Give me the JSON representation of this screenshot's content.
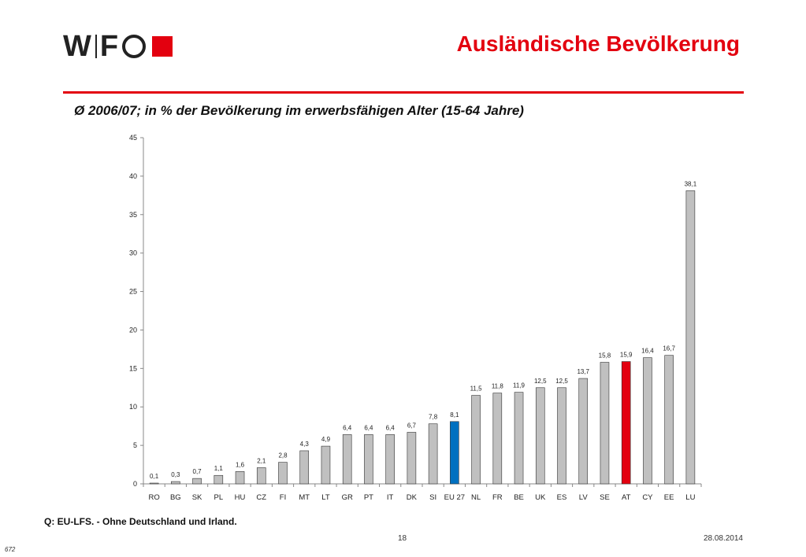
{
  "logo": {
    "text_left": "W",
    "text_mid": "F"
  },
  "header": {
    "title": "Ausländische Bevölkerung"
  },
  "subtitle": "Ø 2006/07; in % der Bevölkerung im erwerbsfähigen Alter (15-64 Jahre)",
  "footer": {
    "source": "Q: EU-LFS. - Ohne Deutschland und Irland.",
    "page": "18",
    "date": "28.08.2014",
    "slide_id": "672"
  },
  "colors": {
    "default_bar": "#c0c0c0",
    "eu27": "#0070c0",
    "at": "#e3000f",
    "accent": "#e3000f"
  },
  "chart_data": {
    "type": "bar",
    "categories": [
      "RO",
      "BG",
      "SK",
      "PL",
      "HU",
      "CZ",
      "FI",
      "MT",
      "LT",
      "GR",
      "PT",
      "IT",
      "DK",
      "SI",
      "EU 27",
      "NL",
      "FR",
      "BE",
      "UK",
      "ES",
      "LV",
      "SE",
      "AT",
      "CY",
      "EE",
      "LU"
    ],
    "values": [
      0.1,
      0.3,
      0.7,
      1.1,
      1.6,
      2.1,
      2.8,
      4.3,
      4.9,
      6.4,
      6.4,
      6.4,
      6.7,
      7.8,
      8.1,
      11.5,
      11.8,
      11.9,
      12.5,
      12.5,
      13.7,
      15.8,
      15.9,
      16.4,
      16.7,
      38.1
    ],
    "value_labels": [
      "0,1",
      "0,3",
      "0,7",
      "1,1",
      "1,6",
      "2,1",
      "2,8",
      "4,3",
      "4,9",
      "6,4",
      "6,4",
      "6,4",
      "6,7",
      "7,8",
      "8,1",
      "11,5",
      "11,8",
      "11,9",
      "12,5",
      "12,5",
      "13,7",
      "15,8",
      "15,9",
      "16,4",
      "16,7",
      "38,1"
    ],
    "highlight": {
      "EU 27": "#0070c0",
      "AT": "#e3000f"
    },
    "ylim": [
      0,
      45
    ],
    "yticks": [
      0,
      5,
      10,
      15,
      20,
      25,
      30,
      35,
      40,
      45
    ],
    "grid": false,
    "legend": "none"
  }
}
